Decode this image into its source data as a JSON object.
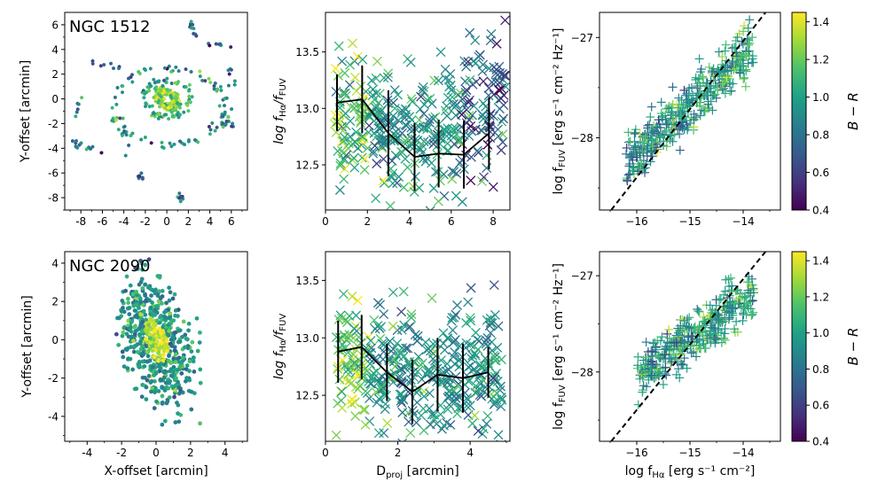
{
  "colormap": {
    "name": "viridis",
    "stops": [
      "#440154",
      "#46327e",
      "#365c8d",
      "#277f8e",
      "#1fa187",
      "#4ac16d",
      "#a0da39",
      "#fde725"
    ],
    "range": [
      0.4,
      1.45
    ],
    "ticks": [
      "0.4",
      "0.6",
      "0.8",
      "1.0",
      "1.2",
      "1.4"
    ],
    "tick_values": [
      0.4,
      0.6,
      0.8,
      1.0,
      1.2,
      1.4
    ],
    "label": "B − R"
  },
  "rows": [
    {
      "galaxy": "NGC 1512",
      "map": {
        "ylabel": "Y-offset [arcmin]",
        "xlabel": "",
        "xlim": [
          -9.5,
          7.5
        ],
        "ylim": [
          -9,
          7
        ],
        "xticks": [
          -8,
          -6,
          -4,
          -2,
          0,
          2,
          4,
          6
        ],
        "xticklabels": [
          "-8",
          "-6",
          "-4",
          "-2",
          "0",
          "2",
          "4",
          "6"
        ],
        "yticks": [
          -8,
          -6,
          -4,
          -2,
          0,
          2,
          4,
          6
        ],
        "yticklabels": [
          "-8",
          "-6",
          "-4",
          "-2",
          "0",
          "2",
          "4",
          "6"
        ]
      },
      "ratio": {
        "ylabel_main": "log f",
        "ylabel_sub1": "Hα",
        "ylabel_mid": "/f",
        "ylabel_sub2": "FUV",
        "xlabel": "",
        "xlim": [
          0,
          8.8
        ],
        "ylim": [
          12.1,
          13.85
        ],
        "xticks": [
          0,
          2,
          4,
          6,
          8
        ],
        "xticklabels": [
          "0",
          "2",
          "4",
          "6",
          "8"
        ],
        "yticks": [
          12.5,
          13.0,
          13.5
        ],
        "yticklabels": [
          "12.5",
          "13.0",
          "13.5"
        ],
        "binned": {
          "x": [
            0.55,
            1.75,
            3.0,
            4.25,
            5.4,
            6.6,
            7.8
          ],
          "y": [
            13.05,
            13.08,
            12.78,
            12.57,
            12.6,
            12.59,
            12.78
          ],
          "err": [
            0.25,
            0.3,
            0.38,
            0.3,
            0.3,
            0.3,
            0.32
          ]
        }
      },
      "sfr": {
        "ylabel": "log f",
        "ylabel_sub": "FUV",
        "ylabel_units": " [erg s⁻¹ cm⁻² Hz⁻¹]",
        "xlabel": "",
        "xlim": [
          -16.7,
          -13.3
        ],
        "ylim": [
          -28.72,
          -26.75
        ],
        "xticks": [
          -16,
          -15,
          -14
        ],
        "xticklabels": [
          "−16",
          "−15",
          "−14"
        ],
        "yticks": [
          -28,
          -27
        ],
        "yticklabels": [
          "−28",
          "−27"
        ],
        "line": {
          "x": [
            -16.48,
            -13.58
          ],
          "y": [
            -28.72,
            -26.75
          ]
        }
      }
    },
    {
      "galaxy": "NGC 2090",
      "map": {
        "ylabel": "Y-offset [arcmin]",
        "xlabel": "X-offset [arcmin]",
        "xlim": [
          -5.3,
          5.3
        ],
        "ylim": [
          -5.3,
          4.6
        ],
        "xticks": [
          -4,
          -2,
          0,
          2,
          4
        ],
        "xticklabels": [
          "-4",
          "-2",
          "0",
          "2",
          "4"
        ],
        "yticks": [
          -4,
          -2,
          0,
          2,
          4
        ],
        "yticklabels": [
          "-4",
          "-2",
          "0",
          "2",
          "4"
        ]
      },
      "ratio": {
        "ylabel_main": "log f",
        "ylabel_sub1": "Hα",
        "ylabel_mid": "/f",
        "ylabel_sub2": "FUV",
        "xlabel_main": "D",
        "xlabel_sub": "proj",
        "xlabel_units": " [arcmin]",
        "xlim": [
          0,
          5.1
        ],
        "ylim": [
          12.1,
          13.75
        ],
        "xticks": [
          0,
          2,
          4
        ],
        "xticklabels": [
          "0",
          "2",
          "4"
        ],
        "yticks": [
          12.5,
          13.0,
          13.5
        ],
        "yticklabels": [
          "12.5",
          "13.0",
          "13.5"
        ],
        "binned": {
          "x": [
            0.35,
            1.0,
            1.7,
            2.4,
            3.1,
            3.8,
            4.5
          ],
          "y": [
            12.88,
            12.92,
            12.7,
            12.53,
            12.68,
            12.65,
            12.7
          ],
          "err": [
            0.27,
            0.28,
            0.25,
            0.28,
            0.32,
            0.3,
            0.22
          ]
        }
      },
      "sfr": {
        "ylabel": "log f",
        "ylabel_sub": "FUV",
        "ylabel_units": " [erg s⁻¹ cm⁻² Hz⁻¹]",
        "xlabel_main": "log f",
        "xlabel_sub": "Hα",
        "xlabel_units": " [erg s⁻¹ cm⁻²]",
        "xlim": [
          -16.7,
          -13.3
        ],
        "ylim": [
          -28.72,
          -26.75
        ],
        "xticks": [
          -16,
          -15,
          -14
        ],
        "xticklabels": [
          "−16",
          "−15",
          "−14"
        ],
        "yticks": [
          -28,
          -27
        ],
        "yticklabels": [
          "−28",
          "−27"
        ],
        "line": {
          "x": [
            -16.48,
            -13.58
          ],
          "y": [
            -28.72,
            -26.75
          ]
        }
      }
    }
  ]
}
